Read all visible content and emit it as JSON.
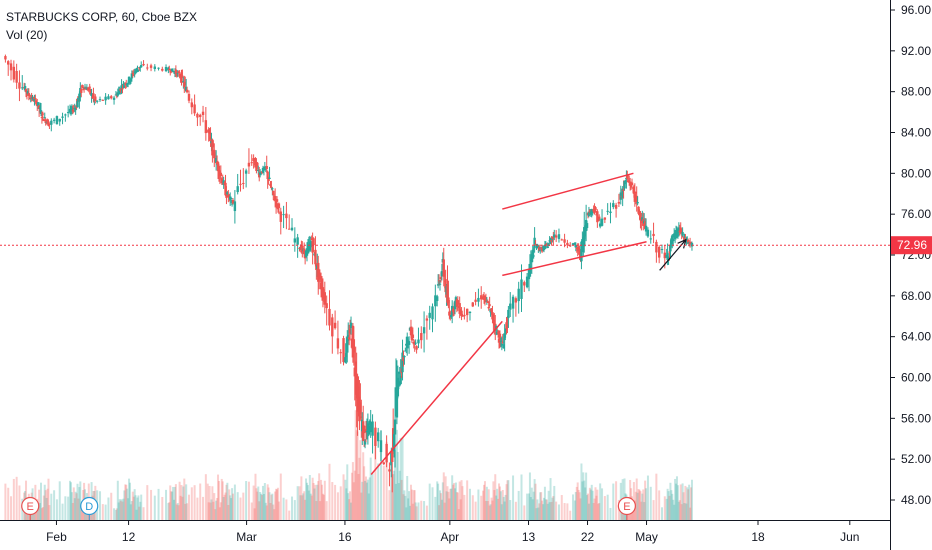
{
  "legend": {
    "symbol_line": "STARBUCKS CORP, 60, Cboe BZX",
    "volume_line": "Vol (20)"
  },
  "last_price_label": "72.96",
  "event_markers": [
    {
      "letter": "E",
      "date": "2020-01-28",
      "color": "#e84f4f"
    },
    {
      "letter": "D",
      "date": "2020-02-06",
      "color": "#2a9bd6"
    },
    {
      "letter": "E",
      "date": "2020-04-28",
      "color": "#e84f4f"
    }
  ],
  "colors": {
    "up": "#26a69a",
    "down": "#ef5350",
    "trendline": "#f23645",
    "last_price": "#f23645",
    "arrow": "#131722",
    "axis_text": "#131722",
    "border": "#131722"
  },
  "chart_data": {
    "type": "candlestick",
    "title": "STARBUCKS CORP, 60, Cboe BZX",
    "indicator": "Vol (20)",
    "x_tick_labels": [
      "Feb",
      "12",
      "Mar",
      "16",
      "Apr",
      "13",
      "22",
      "May",
      "18",
      "Jun"
    ],
    "x_tick_dates": [
      "2020-02-01",
      "2020-02-12",
      "2020-03-01",
      "2020-03-16",
      "2020-04-01",
      "2020-04-13",
      "2020-04-22",
      "2020-05-01",
      "2020-05-18",
      "2020-06-01"
    ],
    "y_tick_labels": [
      "48.00",
      "52.00",
      "56.00",
      "60.00",
      "64.00",
      "68.00",
      "72.00",
      "76.00",
      "80.00",
      "84.00",
      "88.00",
      "92.00",
      "96.00"
    ],
    "ylim": [
      46,
      96.5
    ],
    "last_price": 72.96,
    "price_path": [
      [
        "2020-01-24",
        91.5
      ],
      [
        "2020-01-27",
        88.5
      ],
      [
        "2020-01-28",
        87.5
      ],
      [
        "2020-01-29",
        87.0
      ],
      [
        "2020-01-30",
        85.5
      ],
      [
        "2020-01-31",
        84.8
      ],
      [
        "2020-02-03",
        86.0
      ],
      [
        "2020-02-04",
        86.5
      ],
      [
        "2020-02-05",
        88.5
      ],
      [
        "2020-02-06",
        88.2
      ],
      [
        "2020-02-07",
        87.0
      ],
      [
        "2020-02-10",
        87.5
      ],
      [
        "2020-02-11",
        88.5
      ],
      [
        "2020-02-12",
        89.0
      ],
      [
        "2020-02-13",
        90.0
      ],
      [
        "2020-02-14",
        90.5
      ],
      [
        "2020-02-18",
        90.2
      ],
      [
        "2020-02-19",
        90.0
      ],
      [
        "2020-02-20",
        89.5
      ],
      [
        "2020-02-21",
        88.0
      ],
      [
        "2020-02-24",
        84.5
      ],
      [
        "2020-02-25",
        82.0
      ],
      [
        "2020-02-26",
        80.0
      ],
      [
        "2020-02-27",
        78.0
      ],
      [
        "2020-02-28",
        77.0
      ],
      [
        "2020-03-02",
        81.5
      ],
      [
        "2020-03-03",
        80.0
      ],
      [
        "2020-03-04",
        80.5
      ],
      [
        "2020-03-05",
        78.0
      ],
      [
        "2020-03-06",
        76.5
      ],
      [
        "2020-03-09",
        73.0
      ],
      [
        "2020-03-10",
        72.0
      ],
      [
        "2020-03-11",
        73.5
      ],
      [
        "2020-03-12",
        70.0
      ],
      [
        "2020-03-13",
        67.5
      ],
      [
        "2020-03-16",
        62.0
      ],
      [
        "2020-03-17",
        65.0
      ],
      [
        "2020-03-18",
        58.0
      ],
      [
        "2020-03-19",
        54.0
      ],
      [
        "2020-03-20",
        55.5
      ],
      [
        "2020-03-23",
        51.0
      ],
      [
        "2020-03-24",
        59.0
      ],
      [
        "2020-03-25",
        62.0
      ],
      [
        "2020-03-26",
        64.5
      ],
      [
        "2020-03-27",
        63.0
      ],
      [
        "2020-03-30",
        68.0
      ],
      [
        "2020-03-31",
        71.0
      ],
      [
        "2020-04-01",
        66.0
      ],
      [
        "2020-04-02",
        67.5
      ],
      [
        "2020-04-03",
        66.0
      ],
      [
        "2020-04-06",
        68.0
      ],
      [
        "2020-04-07",
        67.0
      ],
      [
        "2020-04-08",
        65.0
      ],
      [
        "2020-04-09",
        63.0
      ],
      [
        "2020-04-10",
        66.0
      ],
      [
        "2020-04-13",
        70.0
      ],
      [
        "2020-04-14",
        73.0
      ],
      [
        "2020-04-15",
        72.5
      ],
      [
        "2020-04-16",
        73.0
      ],
      [
        "2020-04-17",
        74.0
      ],
      [
        "2020-04-20",
        73.0
      ],
      [
        "2020-04-21",
        72.0
      ],
      [
        "2020-04-22",
        76.0
      ],
      [
        "2020-04-23",
        76.5
      ],
      [
        "2020-04-24",
        75.0
      ],
      [
        "2020-04-27",
        77.5
      ],
      [
        "2020-04-28",
        79.5
      ],
      [
        "2020-04-29",
        78.5
      ],
      [
        "2020-04-30",
        76.0
      ],
      [
        "2020-05-01",
        74.5
      ],
      [
        "2020-05-04",
        71.5
      ],
      [
        "2020-05-05",
        73.5
      ],
      [
        "2020-05-06",
        74.5
      ],
      [
        "2020-05-07",
        73.5
      ],
      [
        "2020-05-08",
        72.96
      ]
    ],
    "trendlines": [
      {
        "from": [
          "2020-03-20",
          50.5
        ],
        "to": [
          "2020-04-09",
          65.5
        ]
      },
      {
        "from": [
          "2020-04-09",
          76.5
        ],
        "to": [
          "2020-04-29",
          80.0
        ]
      },
      {
        "from": [
          "2020-04-09",
          70.0
        ],
        "to": [
          "2020-05-01",
          73.3
        ]
      }
    ],
    "arrow": {
      "from": [
        "2020-05-03",
        70.5
      ],
      "to": [
        "2020-05-07",
        73.5
      ]
    },
    "grid": false,
    "legend_position": "top-left"
  }
}
